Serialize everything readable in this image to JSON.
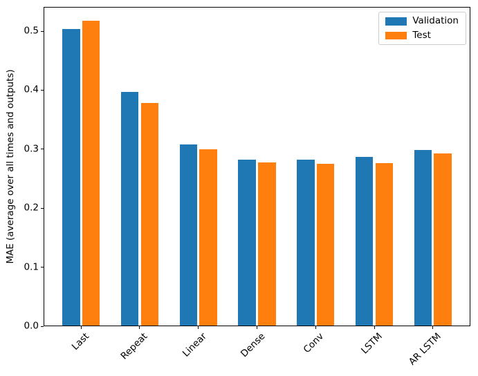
{
  "chart_data": {
    "type": "bar",
    "title": "",
    "xlabel": "",
    "ylabel": "MAE (average over all times and outputs)",
    "categories": [
      "Last",
      "Repeat",
      "Linear",
      "Dense",
      "Conv",
      "LSTM",
      "AR LSTM"
    ],
    "series": [
      {
        "name": "Validation",
        "color": "#1f77b4",
        "values": [
          0.502,
          0.396,
          0.307,
          0.281,
          0.281,
          0.286,
          0.297
        ]
      },
      {
        "name": "Test",
        "color": "#ff7f0e",
        "values": [
          0.516,
          0.377,
          0.299,
          0.276,
          0.274,
          0.275,
          0.291
        ]
      }
    ],
    "ylim": [
      0,
      0.541
    ],
    "yticks": [
      0.0,
      0.1,
      0.2,
      0.3,
      0.4,
      0.5
    ],
    "ytick_labels": [
      "0.0",
      "0.1",
      "0.2",
      "0.3",
      "0.4",
      "0.5"
    ],
    "xtick_rotation": 45,
    "bar_group_width": 0.3,
    "bar_offset": 0.17,
    "x_margin": 0.64,
    "grid": false,
    "legend_position": "upper right",
    "axis_color": "#000000",
    "background_color": "#ffffff"
  }
}
